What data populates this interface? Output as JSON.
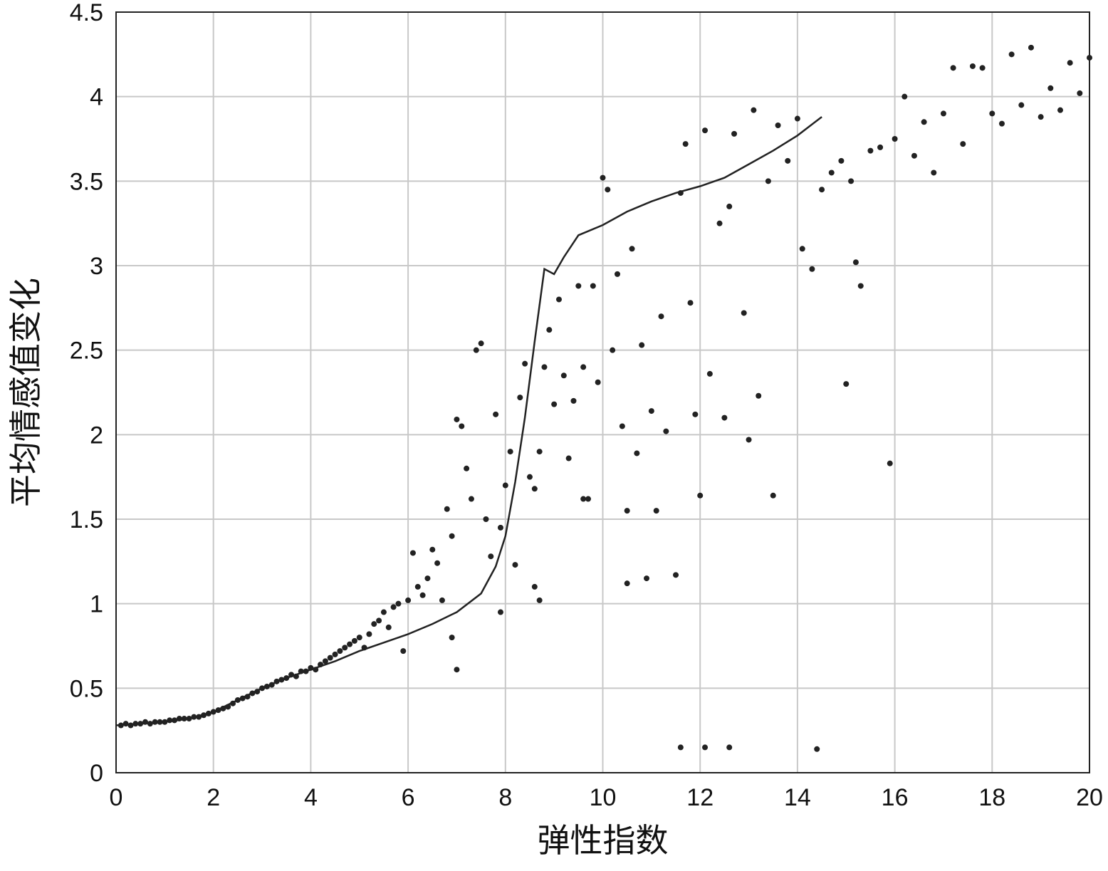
{
  "chart_data": {
    "type": "scatter",
    "title": "",
    "xlabel": "弹性指数",
    "ylabel": "平均情感值变化",
    "xlim": [
      0,
      20
    ],
    "ylim": [
      0,
      4.5
    ],
    "x_ticks": [
      "0",
      "2",
      "4",
      "6",
      "8",
      "10",
      "12",
      "14",
      "16",
      "18",
      "20"
    ],
    "y_ticks": [
      "0",
      "0.5",
      "1",
      "1.5",
      "2",
      "2.5",
      "3",
      "3.5",
      "4",
      "4.5"
    ],
    "grid": true,
    "series": [
      {
        "kind": "line",
        "color": "#222222",
        "x": [
          0,
          0.5,
          1,
          1.5,
          2,
          2.5,
          3,
          3.5,
          4,
          4.5,
          5,
          5.5,
          6,
          6.5,
          7,
          7.5,
          7.8,
          8.0,
          8.2,
          8.4,
          8.6,
          8.8,
          9.0,
          9.2,
          9.5,
          10,
          10.5,
          11,
          11.5,
          12,
          12.5,
          13,
          13.5,
          14,
          14.5
        ],
        "y": [
          0.28,
          0.29,
          0.3,
          0.32,
          0.36,
          0.43,
          0.5,
          0.56,
          0.61,
          0.66,
          0.72,
          0.77,
          0.82,
          0.88,
          0.95,
          1.06,
          1.22,
          1.4,
          1.72,
          2.1,
          2.55,
          2.98,
          2.95,
          3.05,
          3.18,
          3.24,
          3.32,
          3.38,
          3.43,
          3.47,
          3.52,
          3.6,
          3.68,
          3.77,
          3.88
        ]
      },
      {
        "kind": "scatter",
        "color": "#222222",
        "points": [
          [
            0.1,
            0.28
          ],
          [
            0.2,
            0.29
          ],
          [
            0.3,
            0.28
          ],
          [
            0.4,
            0.29
          ],
          [
            0.5,
            0.29
          ],
          [
            0.6,
            0.3
          ],
          [
            0.7,
            0.29
          ],
          [
            0.8,
            0.3
          ],
          [
            0.9,
            0.3
          ],
          [
            1.0,
            0.3
          ],
          [
            1.1,
            0.31
          ],
          [
            1.2,
            0.31
          ],
          [
            1.3,
            0.32
          ],
          [
            1.4,
            0.32
          ],
          [
            1.5,
            0.32
          ],
          [
            1.6,
            0.33
          ],
          [
            1.7,
            0.33
          ],
          [
            1.8,
            0.34
          ],
          [
            1.9,
            0.35
          ],
          [
            2.0,
            0.36
          ],
          [
            2.1,
            0.37
          ],
          [
            2.2,
            0.38
          ],
          [
            2.3,
            0.39
          ],
          [
            2.4,
            0.41
          ],
          [
            2.5,
            0.43
          ],
          [
            2.6,
            0.44
          ],
          [
            2.7,
            0.45
          ],
          [
            2.8,
            0.47
          ],
          [
            2.9,
            0.48
          ],
          [
            3.0,
            0.5
          ],
          [
            3.1,
            0.51
          ],
          [
            3.2,
            0.52
          ],
          [
            3.3,
            0.54
          ],
          [
            3.4,
            0.55
          ],
          [
            3.5,
            0.56
          ],
          [
            3.6,
            0.58
          ],
          [
            3.7,
            0.57
          ],
          [
            3.8,
            0.6
          ],
          [
            3.9,
            0.6
          ],
          [
            4.0,
            0.62
          ],
          [
            4.1,
            0.61
          ],
          [
            4.2,
            0.64
          ],
          [
            4.3,
            0.66
          ],
          [
            4.4,
            0.68
          ],
          [
            4.5,
            0.7
          ],
          [
            4.6,
            0.72
          ],
          [
            4.7,
            0.74
          ],
          [
            4.8,
            0.76
          ],
          [
            4.9,
            0.78
          ],
          [
            5.0,
            0.8
          ],
          [
            5.1,
            0.74
          ],
          [
            5.2,
            0.82
          ],
          [
            5.3,
            0.88
          ],
          [
            5.4,
            0.9
          ],
          [
            5.5,
            0.95
          ],
          [
            5.6,
            0.86
          ],
          [
            5.7,
            0.98
          ],
          [
            5.8,
            1.0
          ],
          [
            5.9,
            0.72
          ],
          [
            6.0,
            1.02
          ],
          [
            6.1,
            1.3
          ],
          [
            6.2,
            1.1
          ],
          [
            6.3,
            1.05
          ],
          [
            6.4,
            1.15
          ],
          [
            6.5,
            1.32
          ],
          [
            6.6,
            1.24
          ],
          [
            6.7,
            1.02
          ],
          [
            6.8,
            1.56
          ],
          [
            6.9,
            1.4
          ],
          [
            7.0,
            2.09
          ],
          [
            7.1,
            2.05
          ],
          [
            7.2,
            1.8
          ],
          [
            7.3,
            1.62
          ],
          [
            7.4,
            2.5
          ],
          [
            7.5,
            2.54
          ],
          [
            7.6,
            1.5
          ],
          [
            7.7,
            1.28
          ],
          [
            7.8,
            2.12
          ],
          [
            7.9,
            1.45
          ],
          [
            8.0,
            1.7
          ],
          [
            8.1,
            1.9
          ],
          [
            8.2,
            1.23
          ],
          [
            8.3,
            2.22
          ],
          [
            8.4,
            2.42
          ],
          [
            8.5,
            1.75
          ],
          [
            8.6,
            1.68
          ],
          [
            8.7,
            1.9
          ],
          [
            8.8,
            2.4
          ],
          [
            8.9,
            2.62
          ],
          [
            9.0,
            2.18
          ],
          [
            9.1,
            2.8
          ],
          [
            9.2,
            2.35
          ],
          [
            9.3,
            1.86
          ],
          [
            9.4,
            2.2
          ],
          [
            9.5,
            2.88
          ],
          [
            9.6,
            2.4
          ],
          [
            9.7,
            1.62
          ],
          [
            9.8,
            2.88
          ],
          [
            9.9,
            2.31
          ],
          [
            10.0,
            3.52
          ],
          [
            10.1,
            3.45
          ],
          [
            10.2,
            2.5
          ],
          [
            10.3,
            2.95
          ],
          [
            10.4,
            2.05
          ],
          [
            10.5,
            1.55
          ],
          [
            10.6,
            3.1
          ],
          [
            10.7,
            1.89
          ],
          [
            10.8,
            2.53
          ],
          [
            11.0,
            2.14
          ],
          [
            11.1,
            1.55
          ],
          [
            11.2,
            2.7
          ],
          [
            11.3,
            2.02
          ],
          [
            11.5,
            1.17
          ],
          [
            11.6,
            3.43
          ],
          [
            11.7,
            3.72
          ],
          [
            11.8,
            2.78
          ],
          [
            11.9,
            2.12
          ],
          [
            12.0,
            1.64
          ],
          [
            12.1,
            3.8
          ],
          [
            12.2,
            2.36
          ],
          [
            12.4,
            3.25
          ],
          [
            12.5,
            2.1
          ],
          [
            12.6,
            3.35
          ],
          [
            12.7,
            3.78
          ],
          [
            12.9,
            2.72
          ],
          [
            13.0,
            1.97
          ],
          [
            13.1,
            3.92
          ],
          [
            13.2,
            2.23
          ],
          [
            13.4,
            3.5
          ],
          [
            13.5,
            1.64
          ],
          [
            13.6,
            3.83
          ],
          [
            13.8,
            3.62
          ],
          [
            14.0,
            3.87
          ],
          [
            14.1,
            3.1
          ],
          [
            14.3,
            2.98
          ],
          [
            14.5,
            3.45
          ],
          [
            14.7,
            3.55
          ],
          [
            14.9,
            3.62
          ],
          [
            15.0,
            2.3
          ],
          [
            15.1,
            3.5
          ],
          [
            15.2,
            3.02
          ],
          [
            15.3,
            2.88
          ],
          [
            15.5,
            3.68
          ],
          [
            15.7,
            3.7
          ],
          [
            15.9,
            1.83
          ],
          [
            16.0,
            3.75
          ],
          [
            16.2,
            4.0
          ],
          [
            16.4,
            3.65
          ],
          [
            16.6,
            3.85
          ],
          [
            16.8,
            3.55
          ],
          [
            17.0,
            3.9
          ],
          [
            17.2,
            4.17
          ],
          [
            17.4,
            3.72
          ],
          [
            17.6,
            4.18
          ],
          [
            17.8,
            4.17
          ],
          [
            18.0,
            3.9
          ],
          [
            18.2,
            3.84
          ],
          [
            18.4,
            4.25
          ],
          [
            18.6,
            3.95
          ],
          [
            18.8,
            4.29
          ],
          [
            19.0,
            3.88
          ],
          [
            19.2,
            4.05
          ],
          [
            19.4,
            3.92
          ],
          [
            19.6,
            4.2
          ],
          [
            19.8,
            4.02
          ],
          [
            20.0,
            4.23
          ],
          [
            11.6,
            0.15
          ],
          [
            12.1,
            0.15
          ],
          [
            12.6,
            0.15
          ],
          [
            14.4,
            0.14
          ],
          [
            10.5,
            1.12
          ],
          [
            10.9,
            1.15
          ],
          [
            7.9,
            0.95
          ],
          [
            8.7,
            1.02
          ],
          [
            7.0,
            0.61
          ],
          [
            6.9,
            0.8
          ],
          [
            8.6,
            1.1
          ],
          [
            9.6,
            1.62
          ]
        ]
      }
    ]
  }
}
